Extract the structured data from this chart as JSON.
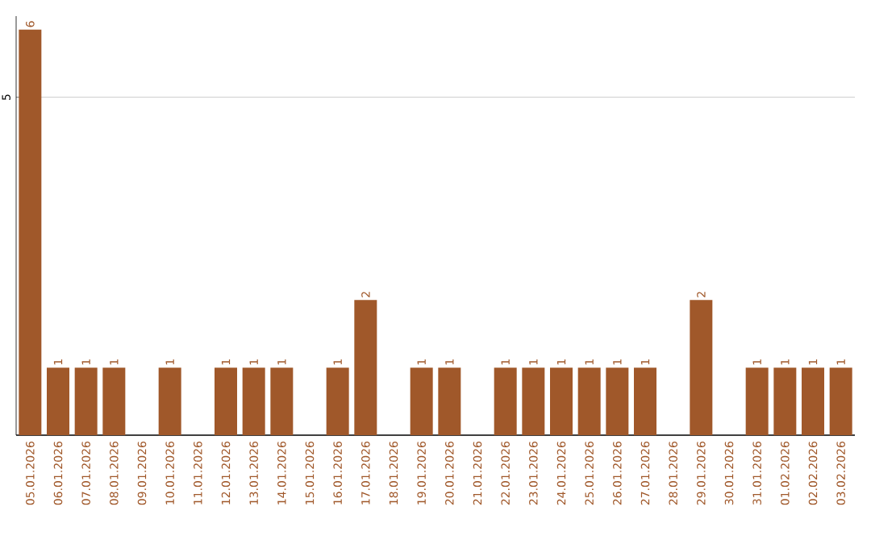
{
  "chart_data": {
    "type": "bar",
    "categories": [
      "05.01.2026",
      "06.01.2026",
      "07.01.2026",
      "08.01.2026",
      "09.01.2026",
      "10.01.2026",
      "11.01.2026",
      "12.01.2026",
      "13.01.2026",
      "14.01.2026",
      "15.01.2026",
      "16.01.2026",
      "17.01.2026",
      "18.01.2026",
      "19.01.2026",
      "20.01.2026",
      "21.01.2026",
      "22.01.2026",
      "23.01.2026",
      "24.01.2026",
      "25.01.2026",
      "26.01.2026",
      "27.01.2026",
      "28.01.2026",
      "29.01.2026",
      "30.01.2026",
      "31.01.2026",
      "01.02.2026",
      "02.02.2026",
      "03.02.2026"
    ],
    "values": [
      6,
      1,
      1,
      1,
      0,
      1,
      0,
      1,
      1,
      1,
      0,
      1,
      2,
      0,
      1,
      1,
      0,
      1,
      1,
      1,
      1,
      1,
      1,
      0,
      2,
      0,
      1,
      1,
      1,
      1
    ],
    "value_labels": [
      "6",
      "1",
      "1",
      "1",
      null,
      "1",
      null,
      "1",
      "1",
      "1",
      null,
      "1",
      "2",
      null,
      "1",
      "1",
      null,
      "1",
      "1",
      "1",
      "1",
      "1",
      "1",
      null,
      "2",
      null,
      "1",
      "1",
      "1",
      "1"
    ],
    "color": "#a0582a",
    "ylim": [
      0,
      6.2
    ],
    "yticks": [
      5
    ],
    "grid": "y"
  }
}
